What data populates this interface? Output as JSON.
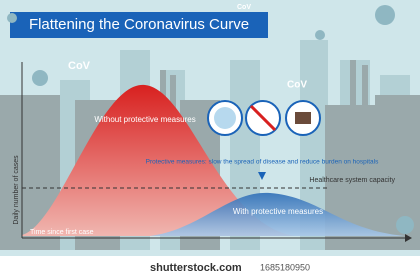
{
  "header": {
    "title": "Flattening the Coronavirus Curve"
  },
  "virus_labels": [
    "CoV",
    "CoV",
    "CoV"
  ],
  "curves": {
    "without": "Without protective measures",
    "with": "With protective measures"
  },
  "note": "Protective measures: slow the spread of disease and reduce burden on hospitals",
  "capacity_label": "Healthcare system capacity",
  "axes": {
    "y_label": "Daily number of cases",
    "x_label": "Time since first case"
  },
  "footer": {
    "site": "shutterstock.com",
    "id": "1685180950"
  }
}
